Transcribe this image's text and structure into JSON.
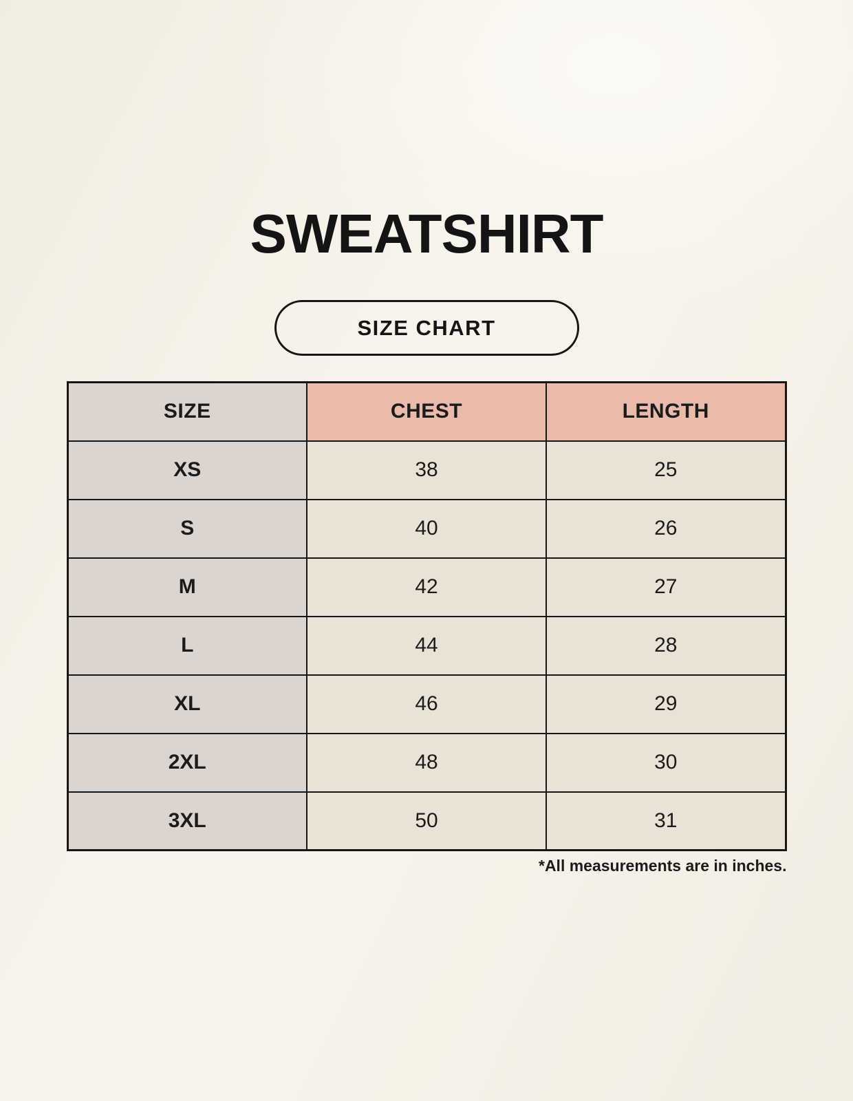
{
  "page": {
    "title": "SWEATSHIRT",
    "badge_label": "SIZE CHART",
    "footnote": "*All measurements are in inches."
  },
  "chart_data": {
    "type": "table",
    "columns": [
      "SIZE",
      "CHEST",
      "LENGTH"
    ],
    "rows": [
      [
        "XS",
        "38",
        "25"
      ],
      [
        "S",
        "40",
        "26"
      ],
      [
        "M",
        "42",
        "27"
      ],
      [
        "L",
        "44",
        "28"
      ],
      [
        "XL",
        "46",
        "29"
      ],
      [
        "2XL",
        "48",
        "30"
      ],
      [
        "3XL",
        "50",
        "31"
      ]
    ],
    "units": "inches"
  },
  "colors": {
    "page_background": "#f7f3ea",
    "header_accent": "#eabbab",
    "size_column": "#dcd4ce",
    "data_cell": "#eae3d5",
    "border": "#161616",
    "text": "#1b1b1b"
  }
}
